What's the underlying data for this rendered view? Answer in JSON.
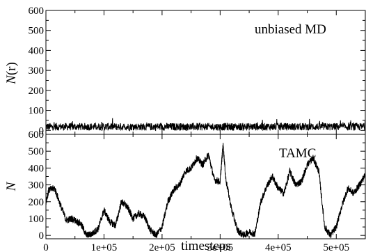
{
  "chart_data": [
    {
      "type": "line",
      "panel": "top",
      "annotation": "unbiased MD",
      "ylabel_italic": "N",
      "ylabel_rest": "(r)",
      "xlim": [
        0,
        550000
      ],
      "ylim": [
        -20,
        600
      ],
      "yticks": [
        0,
        100,
        200,
        300,
        400,
        500,
        600
      ],
      "ytick_labels": [
        "0",
        "100",
        "200",
        "300",
        "400",
        "500",
        "600"
      ],
      "grid": false,
      "series": [
        {
          "x": [
            0,
            50000,
            100000,
            150000,
            200000,
            250000,
            300000,
            350000,
            400000,
            450000,
            500000,
            550000
          ],
          "values": [
            18,
            20,
            19,
            21,
            18,
            20,
            19,
            18,
            20,
            19,
            21,
            20
          ],
          "style": "noisy band 0 to ~60"
        }
      ]
    },
    {
      "type": "line",
      "panel": "bottom",
      "annotation": "TAMC",
      "ylabel": "N",
      "xlabel": "timesteps",
      "xlim": [
        0,
        550000
      ],
      "ylim": [
        -20,
        600
      ],
      "xticks": [
        0,
        100000,
        200000,
        300000,
        400000,
        500000
      ],
      "xtick_labels": [
        "0",
        "1e+05",
        "2e+05",
        "3e+05",
        "4e+05",
        "5e+05"
      ],
      "yticks": [
        0,
        100,
        200,
        300,
        400,
        500,
        600
      ],
      "ytick_labels": [
        "0",
        "100",
        "200",
        "300",
        "400",
        "500",
        "600"
      ],
      "grid": false,
      "series": [
        {
          "x": [
            0,
            5000,
            15000,
            25000,
            35000,
            45000,
            60000,
            70000,
            80000,
            90000,
            100000,
            110000,
            120000,
            130000,
            140000,
            150000,
            160000,
            170000,
            180000,
            190000,
            200000,
            210000,
            220000,
            230000,
            240000,
            250000,
            260000,
            270000,
            280000,
            290000,
            300000,
            305000,
            310000,
            320000,
            330000,
            340000,
            350000,
            360000,
            370000,
            380000,
            390000,
            400000,
            410000,
            420000,
            430000,
            440000,
            450000,
            460000,
            470000,
            480000,
            490000,
            500000,
            510000,
            520000,
            530000,
            540000,
            550000
          ],
          "values": [
            200,
            270,
            280,
            180,
            90,
            100,
            70,
            0,
            10,
            40,
            150,
            80,
            60,
            200,
            170,
            100,
            130,
            110,
            30,
            0,
            50,
            200,
            270,
            300,
            380,
            400,
            460,
            420,
            480,
            330,
            320,
            540,
            330,
            150,
            30,
            0,
            20,
            10,
            200,
            290,
            350,
            280,
            250,
            380,
            300,
            320,
            420,
            460,
            380,
            50,
            0,
            50,
            180,
            280,
            250,
            300,
            360
          ]
        }
      ]
    }
  ]
}
